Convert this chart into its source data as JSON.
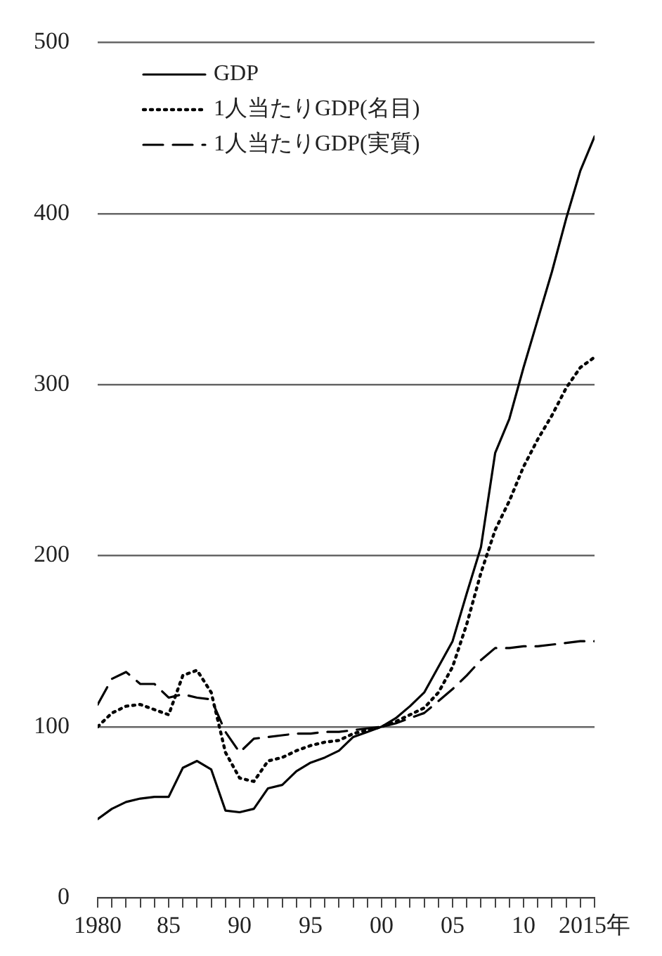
{
  "chart_data": {
    "type": "line",
    "x": [
      1980,
      1981,
      1982,
      1983,
      1984,
      1985,
      1986,
      1987,
      1988,
      1989,
      1990,
      1991,
      1992,
      1993,
      1994,
      1995,
      1996,
      1997,
      1998,
      1999,
      2000,
      2001,
      2002,
      2003,
      2004,
      2005,
      2006,
      2007,
      2008,
      2009,
      2010,
      2011,
      2012,
      2013,
      2014,
      2015
    ],
    "series": [
      {
        "name": "GDP",
        "color": "#000000",
        "line_style": "solid",
        "values": [
          46,
          52,
          56,
          58,
          59,
          59,
          76,
          80,
          75,
          51,
          50,
          52,
          64,
          66,
          74,
          79,
          82,
          86,
          94,
          97,
          100,
          105,
          112,
          120,
          135,
          150,
          178,
          205,
          260,
          280,
          310,
          338,
          366,
          397,
          425,
          445
        ]
      },
      {
        "name": "1人当たりGDP(名目)",
        "color": "#000000",
        "line_style": "dotted",
        "values": [
          100,
          108,
          112,
          113,
          110,
          107,
          130,
          133,
          120,
          85,
          70,
          68,
          80,
          82,
          86,
          89,
          91,
          92,
          96,
          98,
          100,
          103,
          107,
          111,
          120,
          135,
          160,
          190,
          215,
          232,
          252,
          268,
          282,
          298,
          310,
          316
        ]
      },
      {
        "name": "1人当たりGDP(実質)",
        "color": "#000000",
        "line_style": "dashed",
        "values": [
          113,
          128,
          132,
          125,
          125,
          117,
          119,
          117,
          116,
          97,
          85,
          93,
          94,
          95,
          96,
          96,
          97,
          97,
          98,
          99,
          100,
          102,
          105,
          108,
          115,
          122,
          130,
          139,
          146,
          146,
          147,
          147,
          148,
          149,
          150,
          150
        ]
      }
    ],
    "xlim": [
      1980,
      2015
    ],
    "xticks": [
      {
        "value": 1980,
        "label": "1980"
      },
      {
        "value": 1981,
        "label": null
      },
      {
        "value": 1982,
        "label": null
      },
      {
        "value": 1983,
        "label": null
      },
      {
        "value": 1984,
        "label": null
      },
      {
        "value": 1985,
        "label": "85"
      },
      {
        "value": 1986,
        "label": null
      },
      {
        "value": 1987,
        "label": null
      },
      {
        "value": 1988,
        "label": null
      },
      {
        "value": 1989,
        "label": null
      },
      {
        "value": 1990,
        "label": "90"
      },
      {
        "value": 1991,
        "label": null
      },
      {
        "value": 1992,
        "label": null
      },
      {
        "value": 1993,
        "label": null
      },
      {
        "value": 1994,
        "label": null
      },
      {
        "value": 1995,
        "label": "95"
      },
      {
        "value": 1996,
        "label": null
      },
      {
        "value": 1997,
        "label": null
      },
      {
        "value": 1998,
        "label": null
      },
      {
        "value": 1999,
        "label": null
      },
      {
        "value": 2000,
        "label": "00"
      },
      {
        "value": 2001,
        "label": null
      },
      {
        "value": 2002,
        "label": null
      },
      {
        "value": 2003,
        "label": null
      },
      {
        "value": 2004,
        "label": null
      },
      {
        "value": 2005,
        "label": "05"
      },
      {
        "value": 2006,
        "label": null
      },
      {
        "value": 2007,
        "label": null
      },
      {
        "value": 2008,
        "label": null
      },
      {
        "value": 2009,
        "label": null
      },
      {
        "value": 2010,
        "label": "10"
      },
      {
        "value": 2011,
        "label": null
      },
      {
        "value": 2012,
        "label": null
      },
      {
        "value": 2013,
        "label": null
      },
      {
        "value": 2014,
        "label": null
      },
      {
        "value": 2015,
        "label": "2015年"
      }
    ],
    "ylim": [
      0,
      500
    ],
    "yticks": [
      0,
      100,
      200,
      300,
      400,
      500
    ],
    "grid": "y",
    "legend": "top left",
    "marker": "none"
  }
}
